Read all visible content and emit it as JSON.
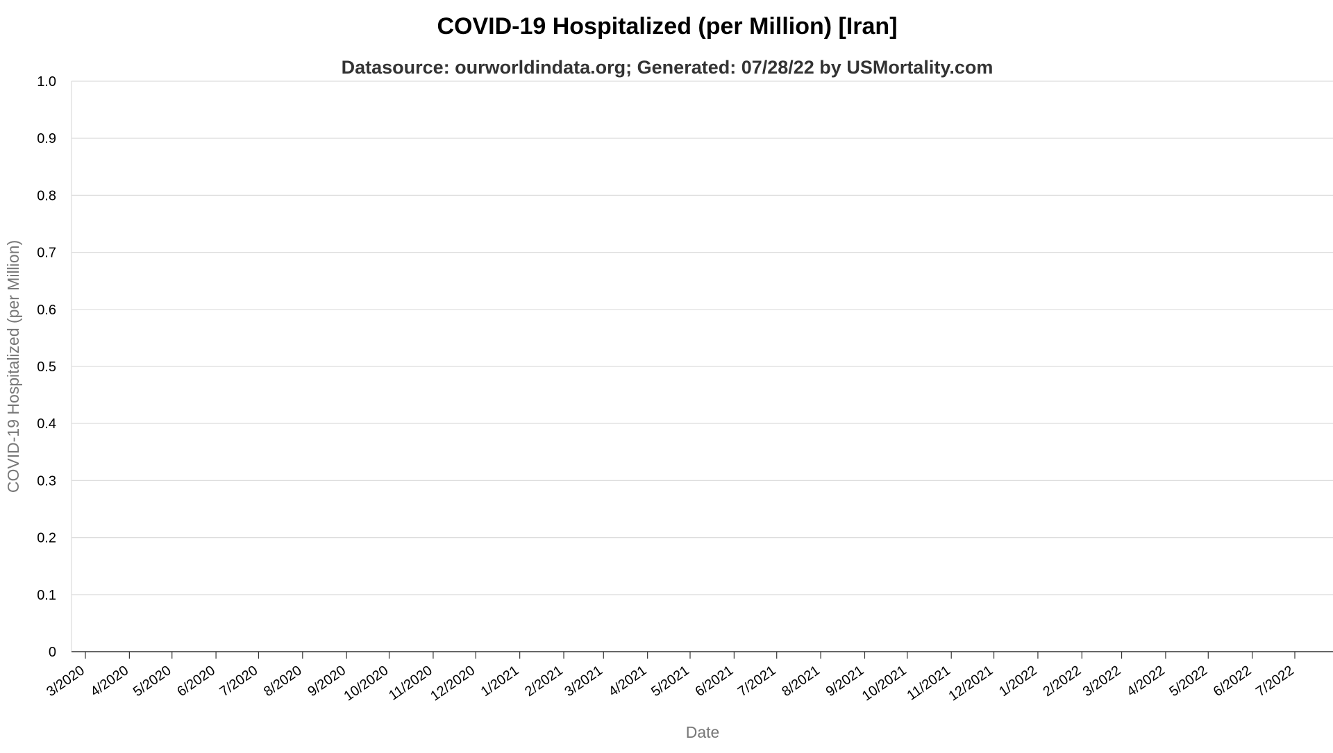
{
  "chart_data": {
    "type": "line",
    "title": "COVID-19 Hospitalized (per Million) [Iran]",
    "subtitle": "Datasource: ourworldindata.org; Generated: 07/28/22 by USMortality.com",
    "xlabel": "Date",
    "ylabel": "COVID-19 Hospitalized (per Million)",
    "ylim": [
      0,
      1
    ],
    "y_ticks": [
      "0",
      "0.1",
      "0.2",
      "0.3",
      "0.4",
      "0.5",
      "0.6",
      "0.7",
      "0.8",
      "0.9",
      "1.0"
    ],
    "x_ticks": [
      "3/2020",
      "4/2020",
      "5/2020",
      "6/2020",
      "7/2020",
      "8/2020",
      "9/2020",
      "10/2020",
      "11/2020",
      "12/2020",
      "1/2021",
      "2/2021",
      "3/2021",
      "4/2021",
      "5/2021",
      "6/2021",
      "7/2021",
      "8/2021",
      "9/2021",
      "10/2021",
      "11/2021",
      "12/2021",
      "1/2022",
      "2/2022",
      "3/2022",
      "4/2022",
      "5/2022",
      "6/2022",
      "7/2022"
    ],
    "series": [],
    "grid": true
  }
}
